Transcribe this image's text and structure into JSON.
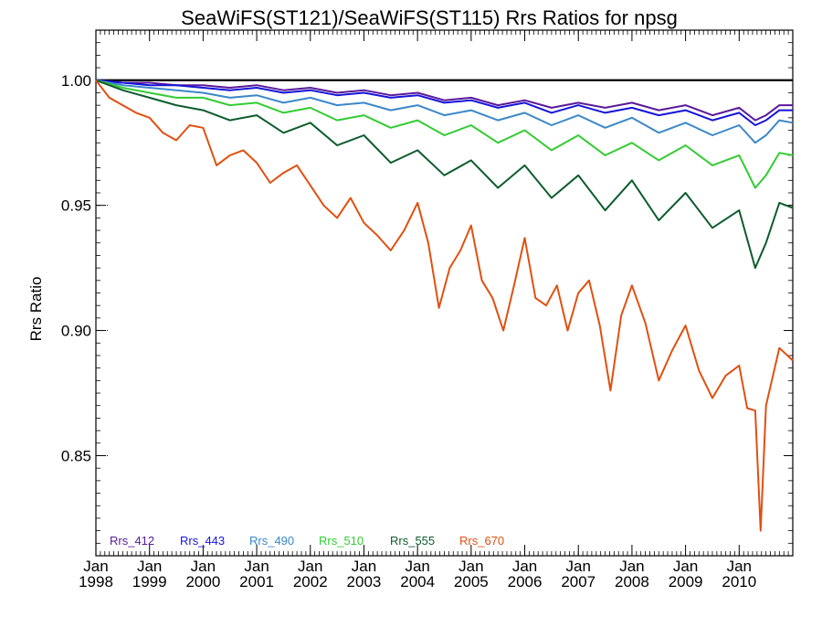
{
  "chart_data": {
    "type": "line",
    "title": "SeaWiFS(ST121)/SeaWiFS(ST115)  Rrs Ratios for npsg",
    "xlabel": "",
    "ylabel": "Rrs Ratio",
    "xlim": [
      1998.0,
      2011.0
    ],
    "ylim": [
      0.81,
      1.02
    ],
    "grid": false,
    "legend_position": "bottom-left",
    "reference_line": 1.0,
    "x_ticks": [
      {
        "x": 1998,
        "month": "Jan",
        "year": "1998"
      },
      {
        "x": 1999,
        "month": "Jan",
        "year": "1999"
      },
      {
        "x": 2000,
        "month": "Jan",
        "year": "2000"
      },
      {
        "x": 2001,
        "month": "Jan",
        "year": "2001"
      },
      {
        "x": 2002,
        "month": "Jan",
        "year": "2002"
      },
      {
        "x": 2003,
        "month": "Jan",
        "year": "2003"
      },
      {
        "x": 2004,
        "month": "Jan",
        "year": "2004"
      },
      {
        "x": 2005,
        "month": "Jan",
        "year": "2005"
      },
      {
        "x": 2006,
        "month": "Jan",
        "year": "2006"
      },
      {
        "x": 2007,
        "month": "Jan",
        "year": "2007"
      },
      {
        "x": 2008,
        "month": "Jan",
        "year": "2008"
      },
      {
        "x": 2009,
        "month": "Jan",
        "year": "2009"
      },
      {
        "x": 2010,
        "month": "Jan",
        "year": "2010"
      }
    ],
    "y_ticks": [
      {
        "y": 0.85,
        "label": "0.85"
      },
      {
        "y": 0.9,
        "label": "0.90"
      },
      {
        "y": 0.95,
        "label": "0.95"
      },
      {
        "y": 1.0,
        "label": "1.00"
      }
    ],
    "series": [
      {
        "name": "Rrs_412",
        "color": "#5a1a9a",
        "x": [
          1998.0,
          1998.5,
          1999.0,
          1999.5,
          2000.0,
          2000.5,
          2001.0,
          2001.5,
          2002.0,
          2002.5,
          2003.0,
          2003.5,
          2004.0,
          2004.5,
          2005.0,
          2005.5,
          2006.0,
          2006.5,
          2007.0,
          2007.5,
          2008.0,
          2008.5,
          2009.0,
          2009.5,
          2010.0,
          2010.3,
          2010.5,
          2010.75,
          2011.0
        ],
        "y": [
          1.0,
          0.999,
          0.999,
          0.998,
          0.998,
          0.997,
          0.998,
          0.996,
          0.997,
          0.995,
          0.996,
          0.994,
          0.995,
          0.992,
          0.993,
          0.99,
          0.992,
          0.989,
          0.991,
          0.989,
          0.991,
          0.988,
          0.99,
          0.986,
          0.989,
          0.984,
          0.986,
          0.99,
          0.99
        ]
      },
      {
        "name": "Rrs_443",
        "color": "#1515d8",
        "x": [
          1998.0,
          1998.5,
          1999.0,
          1999.5,
          2000.0,
          2000.5,
          2001.0,
          2001.5,
          2002.0,
          2002.5,
          2003.0,
          2003.5,
          2004.0,
          2004.5,
          2005.0,
          2005.5,
          2006.0,
          2006.5,
          2007.0,
          2007.5,
          2008.0,
          2008.5,
          2009.0,
          2009.5,
          2010.0,
          2010.3,
          2010.5,
          2010.75,
          2011.0
        ],
        "y": [
          1.0,
          0.999,
          0.998,
          0.998,
          0.997,
          0.996,
          0.997,
          0.995,
          0.996,
          0.994,
          0.995,
          0.993,
          0.994,
          0.991,
          0.992,
          0.989,
          0.991,
          0.987,
          0.99,
          0.987,
          0.989,
          0.986,
          0.988,
          0.984,
          0.987,
          0.982,
          0.984,
          0.988,
          0.988
        ]
      },
      {
        "name": "Rrs_490",
        "color": "#3b88c8",
        "x": [
          1998.0,
          1998.5,
          1999.0,
          1999.5,
          2000.0,
          2000.5,
          2001.0,
          2001.5,
          2002.0,
          2002.5,
          2003.0,
          2003.5,
          2004.0,
          2004.5,
          2005.0,
          2005.5,
          2006.0,
          2006.5,
          2007.0,
          2007.5,
          2008.0,
          2008.5,
          2009.0,
          2009.5,
          2010.0,
          2010.3,
          2010.5,
          2010.75,
          2011.0
        ],
        "y": [
          1.0,
          0.998,
          0.997,
          0.996,
          0.995,
          0.993,
          0.994,
          0.991,
          0.993,
          0.99,
          0.991,
          0.988,
          0.99,
          0.986,
          0.988,
          0.984,
          0.987,
          0.982,
          0.986,
          0.981,
          0.985,
          0.979,
          0.983,
          0.978,
          0.982,
          0.975,
          0.978,
          0.984,
          0.983
        ]
      },
      {
        "name": "Rrs_510",
        "color": "#33cc33",
        "x": [
          1998.0,
          1998.5,
          1999.0,
          1999.5,
          2000.0,
          2000.5,
          2001.0,
          2001.5,
          2002.0,
          2002.5,
          2003.0,
          2003.5,
          2004.0,
          2004.5,
          2005.0,
          2005.5,
          2006.0,
          2006.5,
          2007.0,
          2007.5,
          2008.0,
          2008.5,
          2009.0,
          2009.5,
          2010.0,
          2010.3,
          2010.5,
          2010.75,
          2011.0
        ],
        "y": [
          1.0,
          0.997,
          0.995,
          0.993,
          0.993,
          0.99,
          0.991,
          0.987,
          0.989,
          0.984,
          0.986,
          0.981,
          0.984,
          0.978,
          0.982,
          0.975,
          0.98,
          0.972,
          0.978,
          0.97,
          0.975,
          0.968,
          0.974,
          0.966,
          0.97,
          0.957,
          0.962,
          0.971,
          0.97
        ]
      },
      {
        "name": "Rrs_555",
        "color": "#0d5c2e",
        "x": [
          1998.0,
          1998.5,
          1999.0,
          1999.5,
          2000.0,
          2000.5,
          2001.0,
          2001.5,
          2002.0,
          2002.5,
          2003.0,
          2003.5,
          2004.0,
          2004.5,
          2005.0,
          2005.5,
          2006.0,
          2006.5,
          2007.0,
          2007.5,
          2008.0,
          2008.5,
          2009.0,
          2009.5,
          2010.0,
          2010.3,
          2010.5,
          2010.75,
          2011.0
        ],
        "y": [
          1.0,
          0.996,
          0.993,
          0.99,
          0.988,
          0.984,
          0.986,
          0.979,
          0.983,
          0.974,
          0.978,
          0.967,
          0.972,
          0.962,
          0.968,
          0.957,
          0.966,
          0.953,
          0.962,
          0.948,
          0.96,
          0.944,
          0.955,
          0.941,
          0.948,
          0.925,
          0.935,
          0.951,
          0.949
        ]
      },
      {
        "name": "Rrs_670",
        "color": "#e05010",
        "x": [
          1998.0,
          1998.25,
          1998.5,
          1998.75,
          1999.0,
          1999.25,
          1999.5,
          1999.75,
          2000.0,
          2000.25,
          2000.5,
          2000.75,
          2001.0,
          2001.25,
          2001.5,
          2001.75,
          2002.0,
          2002.25,
          2002.5,
          2002.75,
          2003.0,
          2003.25,
          2003.5,
          2003.75,
          2004.0,
          2004.2,
          2004.4,
          2004.6,
          2004.8,
          2005.0,
          2005.2,
          2005.4,
          2005.6,
          2005.8,
          2006.0,
          2006.2,
          2006.4,
          2006.6,
          2006.8,
          2007.0,
          2007.2,
          2007.4,
          2007.6,
          2007.8,
          2008.0,
          2008.25,
          2008.5,
          2008.75,
          2009.0,
          2009.25,
          2009.5,
          2009.75,
          2010.0,
          2010.15,
          2010.3,
          2010.4,
          2010.5,
          2010.75,
          2011.0
        ],
        "y": [
          1.0,
          0.993,
          0.99,
          0.987,
          0.985,
          0.979,
          0.976,
          0.982,
          0.981,
          0.966,
          0.97,
          0.972,
          0.967,
          0.959,
          0.963,
          0.966,
          0.958,
          0.95,
          0.945,
          0.953,
          0.943,
          0.938,
          0.932,
          0.94,
          0.951,
          0.935,
          0.909,
          0.925,
          0.932,
          0.942,
          0.92,
          0.913,
          0.9,
          0.918,
          0.937,
          0.913,
          0.91,
          0.918,
          0.9,
          0.915,
          0.92,
          0.902,
          0.876,
          0.906,
          0.918,
          0.903,
          0.88,
          0.892,
          0.902,
          0.884,
          0.873,
          0.882,
          0.886,
          0.869,
          0.868,
          0.82,
          0.87,
          0.893,
          0.888
        ]
      }
    ]
  }
}
